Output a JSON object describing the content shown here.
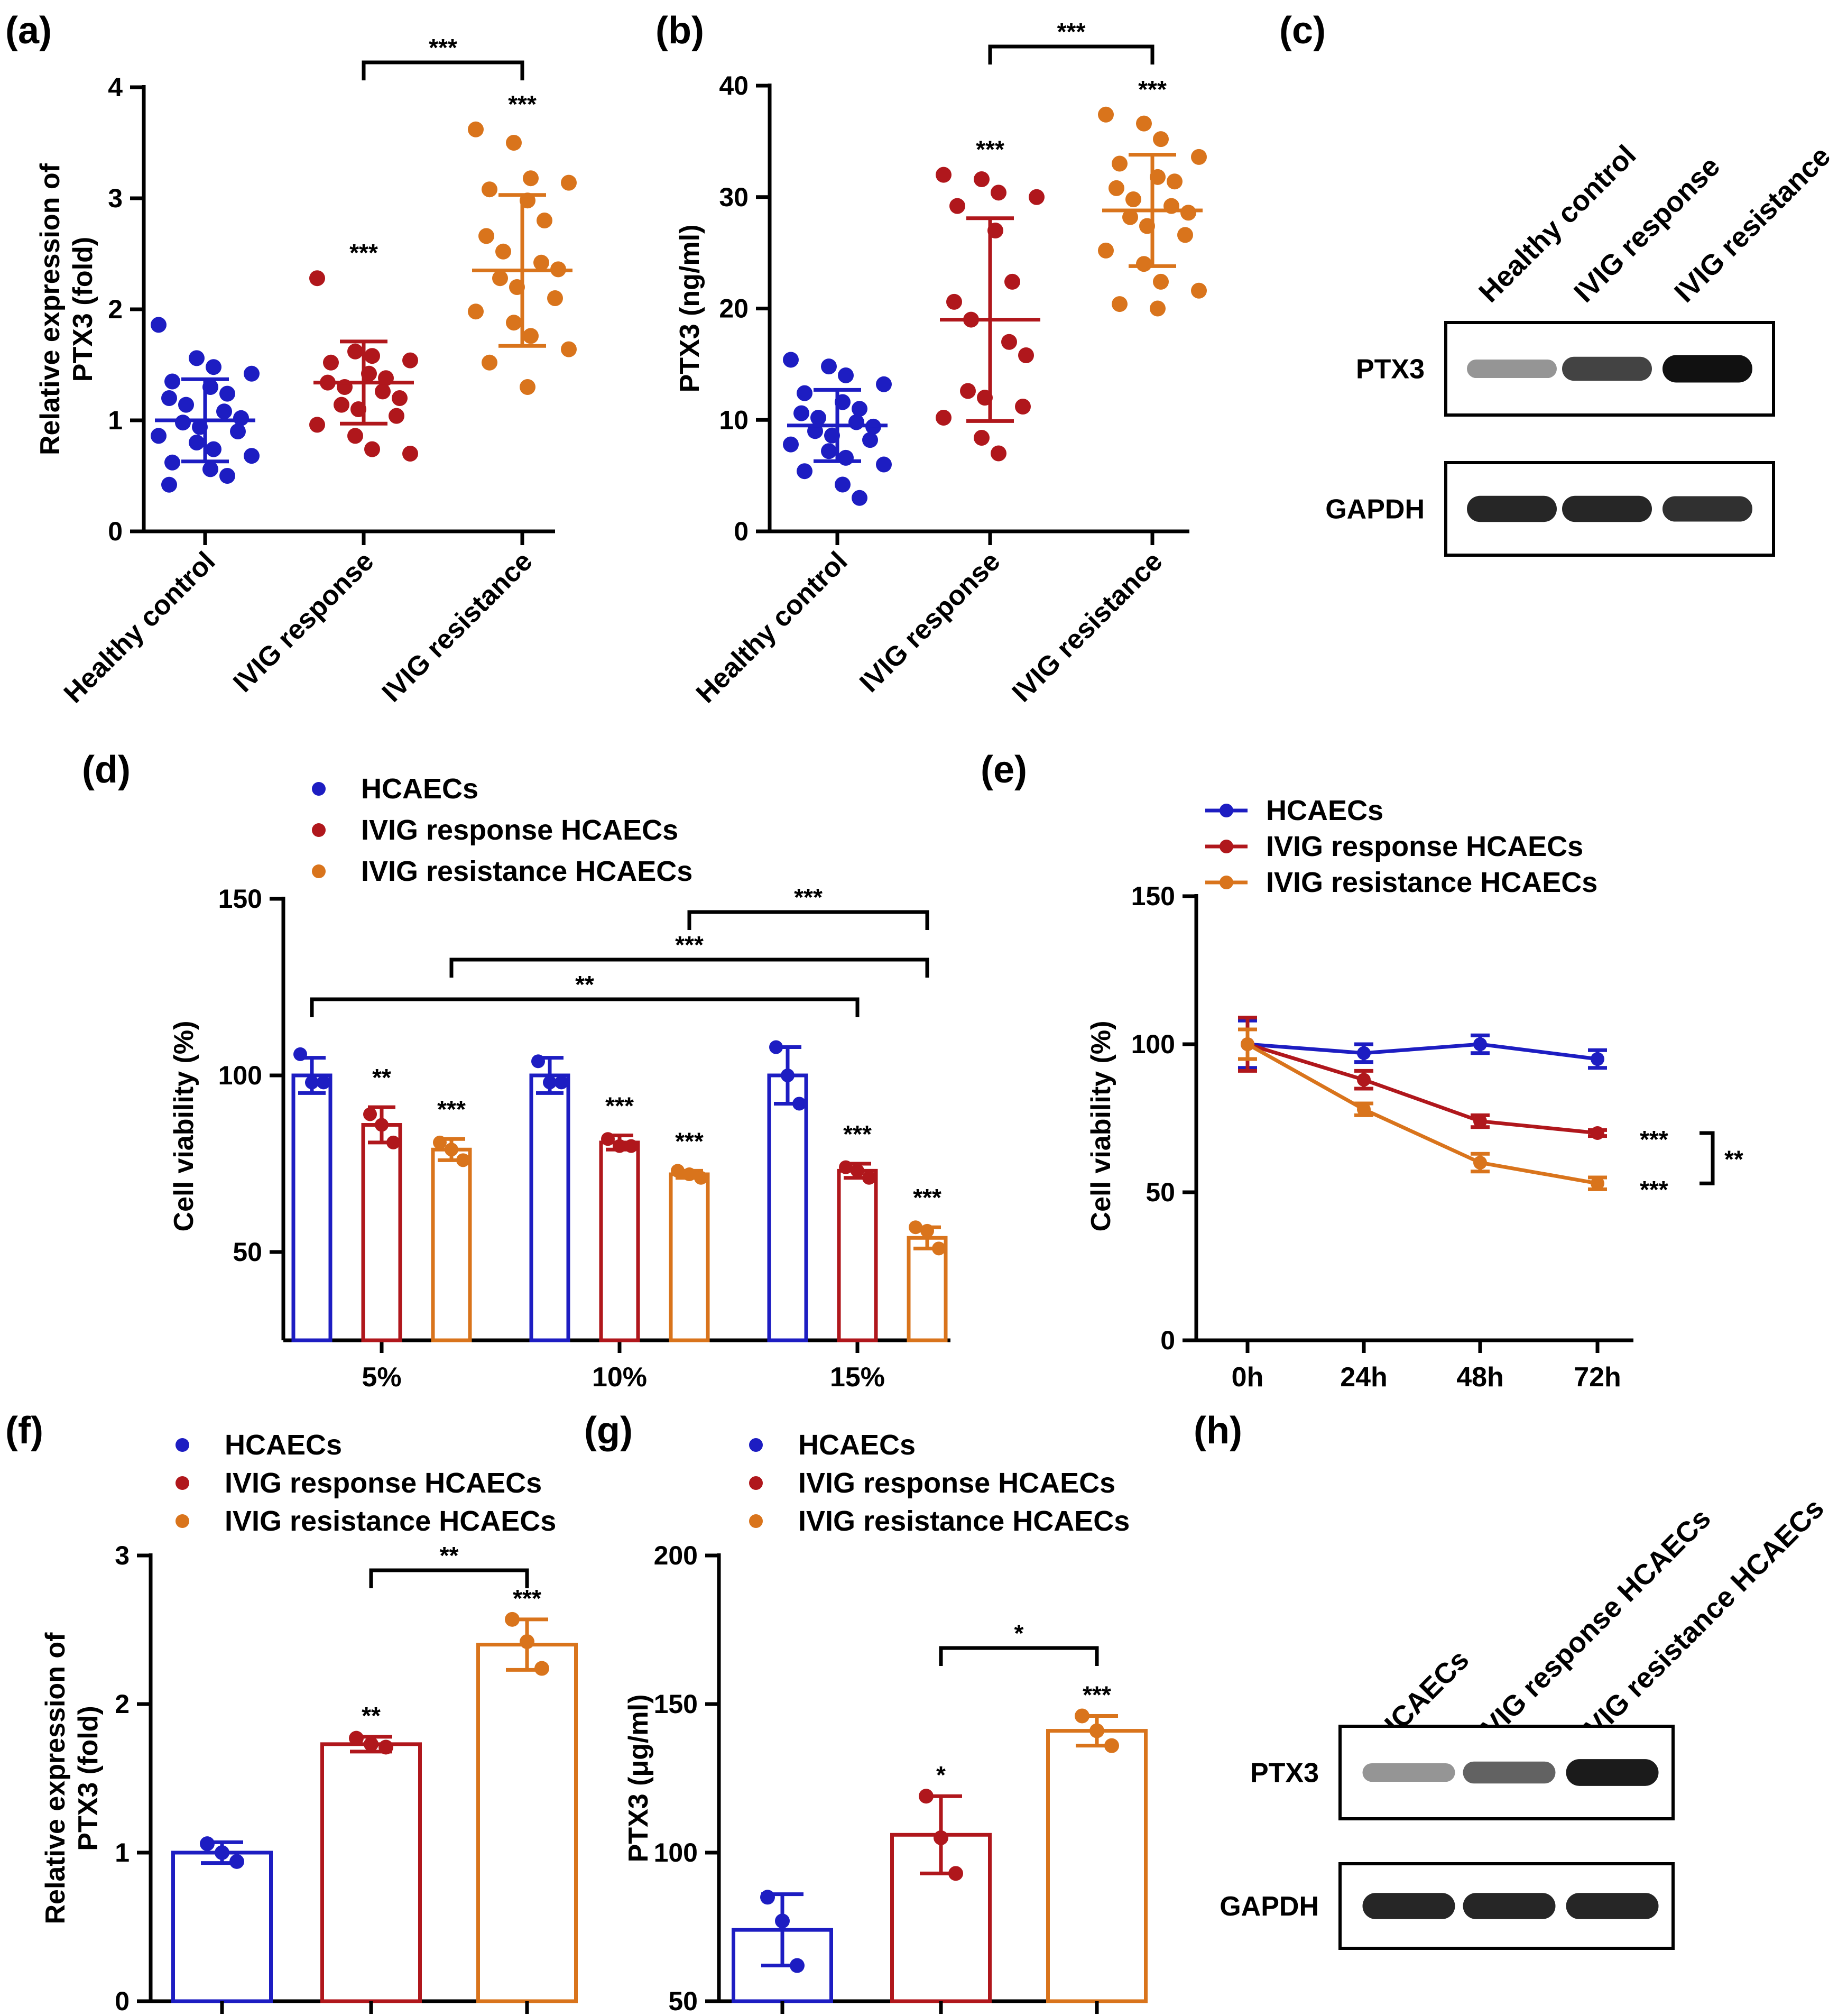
{
  "colors": {
    "healthy": "#1d1dc2",
    "response": "#b0171c",
    "resistance": "#d9741c",
    "axis": "#000000"
  },
  "chart_data": [
    {
      "id": "a",
      "panel_label": "(a)",
      "type": "scatter",
      "ylabel_line1": "Relative expression of",
      "ylabel_line2": "PTX3 (fold)",
      "xlabel": "",
      "ylim": [
        0,
        4
      ],
      "yticks": [
        0,
        1,
        2,
        3,
        4
      ],
      "categories": [
        "Healthy control",
        "IVIG response",
        "IVIG resistance"
      ],
      "groups": [
        {
          "name": "Healthy control",
          "color": "#1d1dc2",
          "mean": 1.0,
          "sd_low": 0.63,
          "sd_high": 1.37,
          "points": [
            1.86,
            1.56,
            1.48,
            1.42,
            1.35,
            1.3,
            1.24,
            1.2,
            1.14,
            1.08,
            1.02,
            0.98,
            0.94,
            0.9,
            0.86,
            0.8,
            0.74,
            0.68,
            0.62,
            0.56,
            0.5,
            0.42
          ],
          "sig": "",
          "bracket": ""
        },
        {
          "name": "IVIG response",
          "color": "#b0171c",
          "mean": 1.34,
          "sd_low": 0.97,
          "sd_high": 1.71,
          "points": [
            2.28,
            1.62,
            1.58,
            1.54,
            1.52,
            1.42,
            1.38,
            1.34,
            1.3,
            1.26,
            1.2,
            1.14,
            1.1,
            1.04,
            0.96,
            0.86,
            0.74,
            0.7
          ],
          "sig": "***"
        },
        {
          "name": "IVIG resistance",
          "color": "#d9741c",
          "mean": 2.35,
          "sd_low": 1.67,
          "sd_high": 3.03,
          "points": [
            3.62,
            3.5,
            3.18,
            3.14,
            3.08,
            2.98,
            2.8,
            2.66,
            2.52,
            2.42,
            2.36,
            2.28,
            2.2,
            2.1,
            1.98,
            1.88,
            1.76,
            1.64,
            1.52,
            1.3
          ],
          "sig": "***"
        }
      ],
      "brackets": [
        {
          "from": 1,
          "to": 2,
          "label": "***"
        }
      ]
    },
    {
      "id": "b",
      "panel_label": "(b)",
      "type": "scatter",
      "ylabel_line1": "PTX3 (ng/ml)",
      "ylabel_line2": "",
      "ylim": [
        0,
        40
      ],
      "yticks": [
        0,
        10,
        20,
        30,
        40
      ],
      "categories": [
        "Healthy control",
        "IVIG response",
        "IVIG resistance"
      ],
      "groups": [
        {
          "name": "Healthy control",
          "color": "#1d1dc2",
          "mean": 9.5,
          "sd_low": 6.3,
          "sd_high": 12.7,
          "points": [
            15.4,
            14.8,
            14.0,
            13.2,
            12.4,
            11.6,
            11.0,
            10.6,
            10.2,
            9.8,
            9.4,
            9.0,
            8.6,
            8.2,
            7.8,
            7.2,
            6.6,
            6.0,
            5.4,
            4.2,
            3.0
          ],
          "sig": ""
        },
        {
          "name": "IVIG response",
          "color": "#b0171c",
          "mean": 19.0,
          "sd_low": 9.9,
          "sd_high": 28.1,
          "points": [
            32.0,
            31.6,
            30.4,
            30.0,
            29.2,
            27.0,
            22.4,
            20.6,
            19.0,
            17.0,
            15.8,
            12.6,
            12.0,
            11.2,
            10.2,
            8.4,
            7.0
          ],
          "sig": "***"
        },
        {
          "name": "IVIG resistance",
          "color": "#d9741c",
          "mean": 28.8,
          "sd_low": 23.8,
          "sd_high": 33.8,
          "points": [
            37.4,
            36.6,
            35.2,
            33.6,
            33.0,
            31.8,
            31.4,
            30.8,
            29.8,
            29.2,
            28.6,
            28.2,
            27.4,
            26.6,
            25.2,
            24.0,
            22.4,
            21.6,
            20.4,
            20.0
          ],
          "sig": "***"
        }
      ],
      "brackets": [
        {
          "from": 1,
          "to": 2,
          "label": "***"
        }
      ]
    },
    {
      "id": "d",
      "panel_label": "(d)",
      "type": "bar",
      "ylabel_line1": "Cell viability (%)",
      "ylim": [
        25,
        150
      ],
      "yticks": [
        50,
        100,
        150
      ],
      "categories": [
        "5%",
        "10%",
        "15%"
      ],
      "legend": [
        "HCAECs",
        "IVIG response HCAECs",
        "IVIG resistance HCAECs"
      ],
      "series": [
        {
          "name": "HCAECs",
          "color": "#1d1dc2",
          "values": [
            100,
            100,
            100
          ],
          "sd": [
            5,
            5,
            8
          ],
          "points": [
            [
              106,
              98,
              98
            ],
            [
              104,
              98,
              98
            ],
            [
              108,
              100,
              92
            ]
          ],
          "sig": [
            "",
            "",
            ""
          ]
        },
        {
          "name": "IVIG response HCAECs",
          "color": "#b0171c",
          "values": [
            86,
            81,
            73
          ],
          "sd": [
            5,
            2,
            2
          ],
          "points": [
            [
              89,
              86,
              81
            ],
            [
              82,
              80,
              80
            ],
            [
              74,
              73,
              71
            ]
          ],
          "sig": [
            "**",
            "***",
            "***"
          ]
        },
        {
          "name": "IVIG resistance HCAECs",
          "color": "#d9741c",
          "values": [
            79,
            72,
            54
          ],
          "sd": [
            3,
            1,
            3
          ],
          "points": [
            [
              81,
              79,
              76
            ],
            [
              73,
              72,
              71
            ],
            [
              57,
              56,
              51
            ]
          ],
          "sig": [
            "***",
            "***",
            "***"
          ]
        }
      ],
      "brackets": [
        {
          "x1": [
            0,
            0
          ],
          "x2": [
            2,
            1
          ],
          "label": "**"
        },
        {
          "x1": [
            0,
            2
          ],
          "x2": [
            2,
            2
          ],
          "label": "***"
        },
        {
          "x1": [
            1,
            2
          ],
          "x2": [
            2,
            2
          ],
          "label": "***"
        }
      ]
    },
    {
      "id": "e",
      "panel_label": "(e)",
      "type": "line",
      "ylabel_line1": "Cell viability (%)",
      "ylim": [
        0,
        150
      ],
      "yticks": [
        0,
        50,
        100,
        150
      ],
      "x": [
        "0h",
        "24h",
        "48h",
        "72h"
      ],
      "legend": [
        "HCAECs",
        "IVIG response HCAECs",
        "IVIG resistance HCAECs"
      ],
      "series": [
        {
          "name": "HCAECs",
          "color": "#1d1dc2",
          "values": [
            100,
            97,
            100,
            95
          ],
          "sd": [
            8,
            3,
            3,
            3
          ],
          "sig": ""
        },
        {
          "name": "IVIG response HCAECs",
          "color": "#b0171c",
          "values": [
            100,
            88,
            74,
            70
          ],
          "sd": [
            9,
            3,
            2,
            1
          ],
          "sig": "***"
        },
        {
          "name": "IVIG resistance HCAECs",
          "color": "#d9741c",
          "values": [
            100,
            78,
            60,
            53
          ],
          "sd": [
            5,
            2,
            3,
            2
          ],
          "sig": "***"
        }
      ],
      "side_bracket_label": "**"
    },
    {
      "id": "f",
      "panel_label": "(f)",
      "type": "bar",
      "ylabel_line1": "Relative expression of",
      "ylabel_line2": "PTX3 (fold)",
      "ylim": [
        0,
        3
      ],
      "yticks": [
        0,
        1,
        2,
        3
      ],
      "legend": [
        "HCAECs",
        "IVIG response HCAECs",
        "IVIG resistance HCAECs"
      ],
      "series": [
        {
          "name": "HCAECs",
          "color": "#1d1dc2",
          "value": 1.0,
          "sd": 0.07,
          "points": [
            1.06,
            1.0,
            0.94
          ],
          "sig": ""
        },
        {
          "name": "IVIG response HCAECs",
          "color": "#b0171c",
          "value": 1.73,
          "sd": 0.05,
          "points": [
            1.77,
            1.73,
            1.71
          ],
          "sig": "**"
        },
        {
          "name": "IVIG resistance HCAECs",
          "color": "#d9741c",
          "value": 2.4,
          "sd": 0.17,
          "points": [
            2.57,
            2.42,
            2.24
          ],
          "sig": "***"
        }
      ],
      "brackets": [
        {
          "from": 1,
          "to": 2,
          "label": "**"
        }
      ]
    },
    {
      "id": "g",
      "panel_label": "(g)",
      "type": "bar",
      "ylabel_line1": "PTX3 (μg/ml)",
      "ylim": [
        50,
        200
      ],
      "yticks": [
        50,
        100,
        150,
        200
      ],
      "legend": [
        "HCAECs",
        "IVIG response HCAECs",
        "IVIG resistance HCAECs"
      ],
      "series": [
        {
          "name": "HCAECs",
          "color": "#1d1dc2",
          "value": 74,
          "sd": 12,
          "points": [
            85,
            77,
            62
          ],
          "sig": ""
        },
        {
          "name": "IVIG response HCAECs",
          "color": "#b0171c",
          "value": 106,
          "sd": 13,
          "points": [
            119,
            105,
            93
          ],
          "sig": "*"
        },
        {
          "name": "IVIG resistance HCAECs",
          "color": "#d9741c",
          "value": 141,
          "sd": 5,
          "points": [
            146,
            141,
            136
          ],
          "sig": "***"
        }
      ],
      "brackets": [
        {
          "from": 1,
          "to": 2,
          "label": "*"
        }
      ]
    }
  ],
  "blots": {
    "c": {
      "panel_label": "(c)",
      "lanes": [
        "Healthy control",
        "IVIG response",
        "IVIG resistance"
      ],
      "rows": [
        {
          "label": "PTX3",
          "intensity": [
            0.35,
            0.75,
            1.0
          ]
        },
        {
          "label": "GAPDH",
          "intensity": [
            0.9,
            0.9,
            0.85
          ]
        }
      ]
    },
    "h": {
      "panel_label": "(h)",
      "lanes": [
        "HCAECs",
        "IVIG response HCAECs",
        "IVIG resistance HCAECs"
      ],
      "rows": [
        {
          "label": "PTX3",
          "intensity": [
            0.35,
            0.6,
            0.95
          ]
        },
        {
          "label": "GAPDH",
          "intensity": [
            0.9,
            0.9,
            0.9
          ]
        }
      ]
    }
  }
}
